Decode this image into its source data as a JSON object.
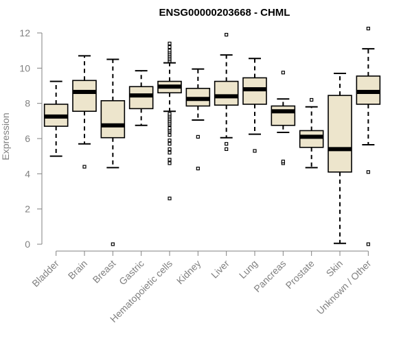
{
  "chart_data": {
    "type": "boxplot",
    "title": "ENSG00000203668 - CHML",
    "xlabel": "",
    "ylabel": "Expression",
    "ylim": [
      0,
      12
    ],
    "yticks": [
      "0",
      "2",
      "4",
      "6",
      "8",
      "10",
      "12"
    ],
    "grid": false,
    "colors": {
      "box_fill": "#ede5cc",
      "stroke": "#000000",
      "axis": "#808080"
    },
    "categories": [
      "Bladder",
      "Brain",
      "Breast",
      "Gastric",
      "Hematopoietic cells",
      "Kidney",
      "Liver",
      "Lung",
      "Pancreas",
      "Prostate",
      "Skin",
      "Unknown / Other"
    ],
    "boxes": [
      {
        "category": "Bladder",
        "whisker_low": 5.0,
        "q1": 6.7,
        "median": 7.25,
        "q3": 7.95,
        "whisker_high": 9.25,
        "outliers": []
      },
      {
        "category": "Brain",
        "whisker_low": 5.7,
        "q1": 7.55,
        "median": 8.65,
        "q3": 9.3,
        "whisker_high": 10.7,
        "outliers": [
          4.4
        ]
      },
      {
        "category": "Breast",
        "whisker_low": 4.35,
        "q1": 6.05,
        "median": 6.75,
        "q3": 8.15,
        "whisker_high": 10.5,
        "outliers": [
          0.0
        ]
      },
      {
        "category": "Gastric",
        "whisker_low": 6.75,
        "q1": 7.7,
        "median": 8.45,
        "q3": 8.95,
        "whisker_high": 9.85,
        "outliers": []
      },
      {
        "category": "Hematopoietic cells",
        "whisker_low": 7.55,
        "q1": 8.6,
        "median": 8.95,
        "q3": 9.25,
        "whisker_high": 10.3,
        "outliers": [
          2.6,
          4.6,
          4.8,
          5.2,
          5.4,
          5.7,
          5.9,
          6.2,
          6.4,
          6.5,
          6.6,
          6.8,
          6.9,
          7.0,
          7.1,
          7.2,
          7.3,
          7.4,
          10.4,
          10.5,
          10.6,
          10.7,
          10.8,
          10.9,
          11.0,
          11.2,
          11.4
        ]
      },
      {
        "category": "Kidney",
        "whisker_low": 7.05,
        "q1": 7.85,
        "median": 8.25,
        "q3": 8.85,
        "whisker_high": 9.95,
        "outliers": [
          4.3,
          6.1
        ]
      },
      {
        "category": "Liver",
        "whisker_low": 6.05,
        "q1": 7.9,
        "median": 8.4,
        "q3": 9.25,
        "whisker_high": 10.75,
        "outliers": [
          5.4,
          5.7,
          11.9
        ]
      },
      {
        "category": "Lung",
        "whisker_low": 6.25,
        "q1": 7.95,
        "median": 8.8,
        "q3": 9.45,
        "whisker_high": 10.55,
        "outliers": [
          5.3
        ]
      },
      {
        "category": "Pancreas",
        "whisker_low": 6.35,
        "q1": 6.75,
        "median": 7.55,
        "q3": 7.85,
        "whisker_high": 8.25,
        "outliers": [
          4.6,
          4.7,
          9.75
        ]
      },
      {
        "category": "Prostate",
        "whisker_low": 4.35,
        "q1": 5.5,
        "median": 6.1,
        "q3": 6.45,
        "whisker_high": 7.8,
        "outliers": [
          8.2
        ]
      },
      {
        "category": "Skin",
        "whisker_low": 0.05,
        "q1": 4.1,
        "median": 5.4,
        "q3": 8.45,
        "whisker_high": 9.7,
        "outliers": []
      },
      {
        "category": "Unknown / Other",
        "whisker_low": 5.65,
        "q1": 7.95,
        "median": 8.65,
        "q3": 9.55,
        "whisker_high": 11.1,
        "outliers": [
          0.0,
          4.1,
          12.25
        ]
      }
    ]
  }
}
